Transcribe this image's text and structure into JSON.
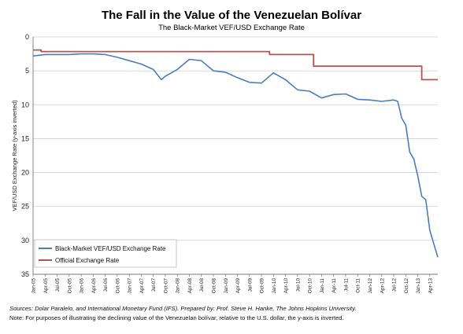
{
  "chart_data": {
    "type": "line",
    "title": "The Fall in the Value of the Venezuelan Bolívar",
    "subtitle": "The Black-Market VEF/USD Exchange Rate",
    "ylabel": "VEF/USD Exchange Rate (y-axis inverted)",
    "xlabel": "",
    "ylim": [
      0,
      35
    ],
    "y_inverted": true,
    "yticks": [
      0,
      5,
      10,
      15,
      20,
      25,
      30,
      35
    ],
    "grid": "horizontal",
    "legend_position": "bottom-left",
    "x_tick_labels": [
      "Jan-05",
      "Apr-05",
      "Jul-05",
      "Oct-05",
      "Jan-06",
      "Apr-06",
      "Jul-06",
      "Oct-06",
      "Jan-07",
      "Apr-07",
      "Jul-07",
      "Oct-07",
      "Jan-08",
      "Apr-08",
      "Jul-08",
      "Oct-08",
      "Jan-09",
      "Apr-09",
      "Jul-09",
      "Oct-09",
      "Jan-10",
      "Apr-10",
      "Jul-10",
      "Oct-10",
      "Jan-11",
      "Apr-11",
      "Jul-11",
      "Oct-11",
      "Jan-12",
      "Apr-12",
      "Jul-12",
      "Oct-12",
      "Jan-13",
      "Apr-13"
    ],
    "series": [
      {
        "name": "Black-Market VEF/USD Exchange Rate",
        "color": "#4a7ebb",
        "x": [
          "2005-01",
          "2005-04",
          "2005-07",
          "2005-10",
          "2006-01",
          "2006-04",
          "2006-07",
          "2006-10",
          "2007-01",
          "2007-04",
          "2007-07",
          "2007-09",
          "2007-10",
          "2008-01",
          "2008-04",
          "2008-07",
          "2008-10",
          "2009-01",
          "2009-04",
          "2009-07",
          "2009-10",
          "2010-01",
          "2010-04",
          "2010-07",
          "2010-10",
          "2011-01",
          "2011-04",
          "2011-07",
          "2011-10",
          "2012-01",
          "2012-04",
          "2012-07",
          "2012-08",
          "2012-09",
          "2012-10",
          "2012-11",
          "2012-12",
          "2013-01",
          "2013-02",
          "2013-03",
          "2013-04",
          "2013-05",
          "2013-06"
        ],
        "values": [
          2.8,
          2.6,
          2.6,
          2.6,
          2.5,
          2.5,
          2.6,
          3.0,
          3.5,
          4.0,
          4.8,
          6.3,
          5.8,
          4.8,
          3.3,
          3.5,
          5.0,
          5.2,
          6.0,
          6.7,
          6.8,
          5.3,
          6.3,
          7.8,
          8.0,
          9.0,
          8.5,
          8.4,
          9.2,
          9.3,
          9.5,
          9.3,
          9.5,
          12.0,
          13.0,
          17.0,
          18.0,
          20.5,
          23.5,
          24.0,
          28.5,
          30.5,
          32.5
        ]
      },
      {
        "name": "Official Exchange Rate",
        "color": "#c0504d",
        "step": true,
        "x": [
          "2005-01",
          "2005-03",
          "2009-12",
          "2010-11",
          "2013-02",
          "2013-06"
        ],
        "values": [
          1.92,
          2.15,
          2.6,
          4.3,
          6.3,
          6.3
        ]
      }
    ]
  },
  "notes": {
    "sources": "Sources: Dolar Paralelo, and International Monetary Fund (IFS). Prepared by: Prof. Steve H. Hanke, The Johns Hopkins University.",
    "note": "Note: For purposes of illustrating the declining value of the Venezuelan bolívar, relative to the U.S. dollar, the y-axis is inverted."
  }
}
